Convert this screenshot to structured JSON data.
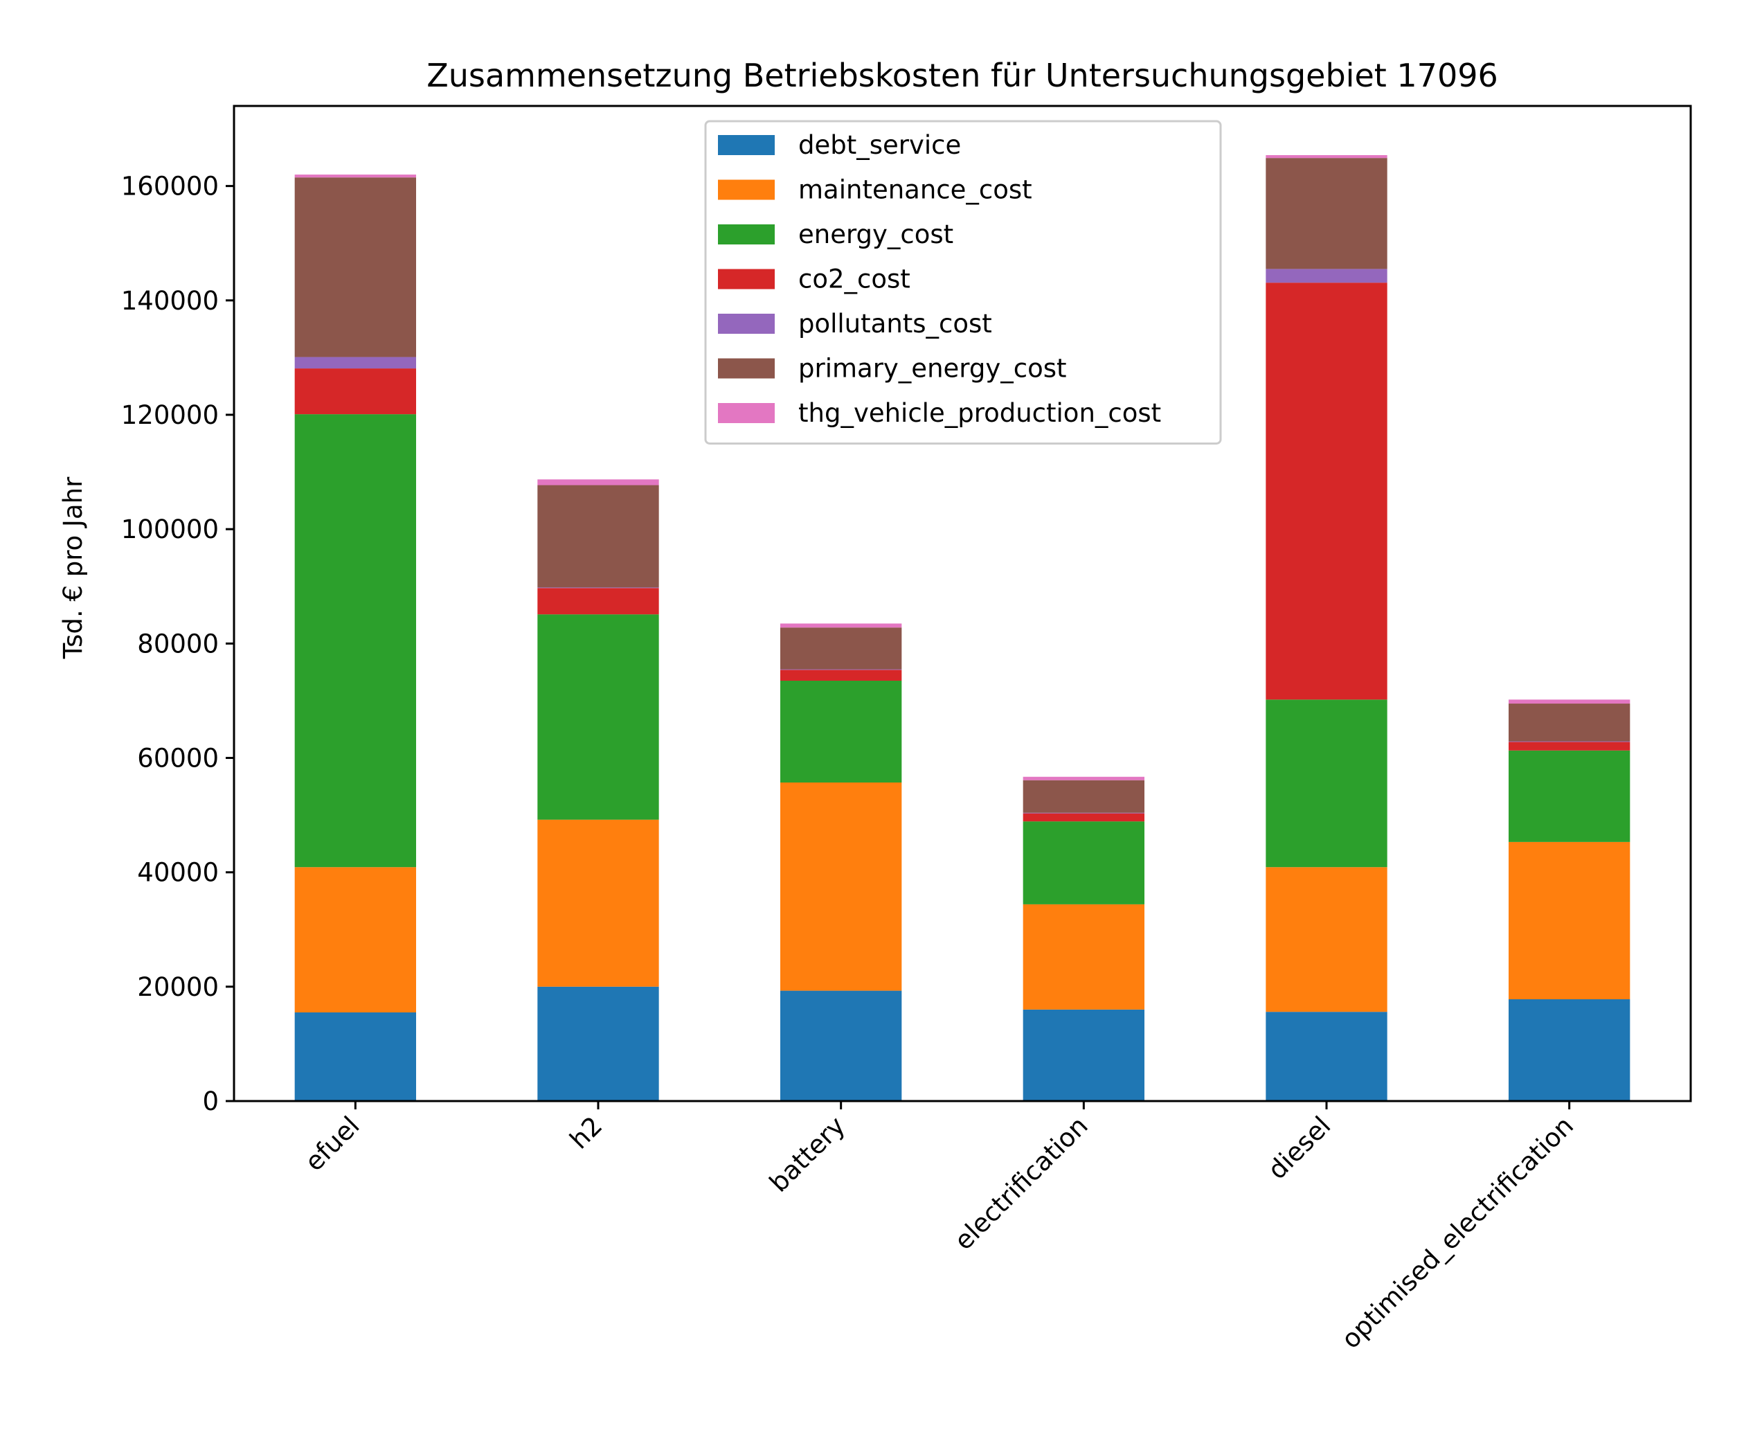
{
  "chart_data": {
    "type": "bar",
    "stacked": true,
    "title": "Zusammensetzung Betriebskosten für Untersuchungsgebiet 17096",
    "xlabel": "",
    "ylabel": "Tsd. € pro Jahr",
    "ylim": [
      0,
      174000
    ],
    "yticks": [
      0,
      20000,
      40000,
      60000,
      80000,
      100000,
      120000,
      140000,
      160000
    ],
    "ytick_labels": [
      "0",
      "20000",
      "40000",
      "60000",
      "80000",
      "100000",
      "120000",
      "140000",
      "160000"
    ],
    "grid": false,
    "legend_position": "top-center",
    "categories": [
      "efuel",
      "h2",
      "battery",
      "electrification",
      "diesel",
      "optimised_electrification"
    ],
    "series": [
      {
        "name": "debt_service",
        "color": "#1f77b4",
        "values": [
          15500,
          20000,
          19300,
          16000,
          15600,
          17800
        ]
      },
      {
        "name": "maintenance_cost",
        "color": "#ff7f0e",
        "values": [
          25400,
          29200,
          36400,
          18400,
          25300,
          27500
        ]
      },
      {
        "name": "energy_cost",
        "color": "#2ca02c",
        "values": [
          79200,
          35900,
          17800,
          14500,
          29300,
          16000
        ]
      },
      {
        "name": "co2_cost",
        "color": "#d62728",
        "values": [
          8000,
          4600,
          1900,
          1400,
          72900,
          1500
        ]
      },
      {
        "name": "pollutants_cost",
        "color": "#9467bd",
        "values": [
          2000,
          100,
          100,
          100,
          2400,
          100
        ]
      },
      {
        "name": "primary_energy_cost",
        "color": "#8c564b",
        "values": [
          31400,
          17900,
          7300,
          5700,
          19400,
          6600
        ]
      },
      {
        "name": "thg_vehicle_production_cost",
        "color": "#e377c2",
        "values": [
          500,
          1000,
          700,
          600,
          500,
          700
        ]
      }
    ]
  }
}
